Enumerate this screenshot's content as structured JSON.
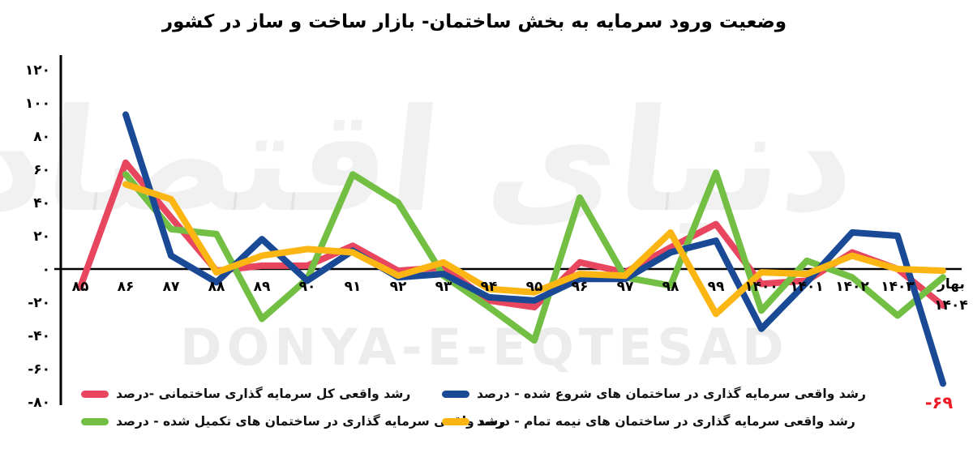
{
  "title": "وضعیت ورود سرمایه به بخش ساختمان- بازار ساخت و ساز در کشور",
  "watermark": {
    "persian": "دنیای اقتصاد",
    "latin": "DONYA-E-EQTESAD"
  },
  "annotation": {
    "text": "-۶۹",
    "color": "#ed1c24"
  },
  "legend": {
    "rows": [
      [
        0,
        1
      ],
      [
        2,
        3
      ]
    ]
  },
  "chart_data": {
    "type": "line",
    "title": "وضعیت ورود سرمایه به بخش ساختمان- بازار ساخت و ساز در کشور",
    "categories": [
      "۸۵",
      "۸۶",
      "۸۷",
      "۸۸",
      "۸۹",
      "۹۰",
      "۹۱",
      "۹۲",
      "۹۳",
      "۹۴",
      "۹۵",
      "۹۶",
      "۹۷",
      "۹۸",
      "۹۹",
      "۱۴۰۰",
      "۱۴۰۱",
      "۱۴۰۲",
      "۱۴۰۳",
      "بهار ۱۴۰۴"
    ],
    "series": [
      {
        "name": "رشد واقعی کل سرمایه گذاری ساختمانی -درصد",
        "color": "#e8455f",
        "values": [
          -11,
          64,
          31,
          -1,
          2,
          2,
          14,
          -1,
          1,
          -19,
          -23,
          4,
          -2,
          13,
          27,
          -9,
          -7,
          10,
          0,
          -22
        ]
      },
      {
        "name": "رشد واقعی سرمایه گذاری در ساختمان های شروع شده - درصد",
        "color": "#1a4a96",
        "values": [
          null,
          93,
          8,
          -8,
          18,
          -7,
          11,
          -5,
          -3,
          -17,
          -19,
          -6,
          -6,
          10,
          17,
          -36,
          -8,
          22,
          20,
          -69
        ]
      },
      {
        "name": "رشد واقعی سرمایه گذاری در ساختمان های تکمیل شده - درصد",
        "color": "#72bf44",
        "values": [
          null,
          57,
          24,
          21,
          -30,
          -6,
          57,
          40,
          -4,
          -23,
          -43,
          43,
          -5,
          -10,
          58,
          -25,
          5,
          -5,
          -28,
          -5
        ]
      },
      {
        "name": "رشد واقعی سرمایه گذاری در ساختمان های نیمه تمام - درصد",
        "color": "#fbb614",
        "values": [
          null,
          51,
          42,
          -2,
          8,
          12,
          10,
          -4,
          4,
          -12,
          -14,
          -3,
          -4,
          22,
          -27,
          -2,
          -3,
          8,
          0,
          -1
        ]
      }
    ],
    "y_ticks": [
      "۱۲۰",
      "۱۰۰",
      "۸۰",
      "۶۰",
      "۴۰",
      "۲۰",
      "۰",
      "-۲۰",
      "-۴۰",
      "-۶۰",
      "-۸۰"
    ],
    "y_tick_values": [
      120,
      100,
      80,
      60,
      40,
      20,
      0,
      -20,
      -40,
      -60,
      -80
    ],
    "ylim": [
      -80,
      120
    ],
    "grid": false,
    "legend_position": "bottom",
    "annotation": {
      "text": "-۶۹",
      "value": -69,
      "series_index": 1,
      "category": "بهار ۱۴۰۴"
    }
  }
}
